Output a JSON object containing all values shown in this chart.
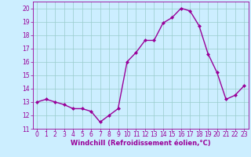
{
  "x": [
    0,
    1,
    2,
    3,
    4,
    5,
    6,
    7,
    8,
    9,
    10,
    11,
    12,
    13,
    14,
    15,
    16,
    17,
    18,
    19,
    20,
    21,
    22,
    23
  ],
  "y": [
    13.0,
    13.2,
    13.0,
    12.8,
    12.5,
    12.5,
    12.3,
    11.5,
    12.0,
    12.5,
    16.0,
    16.7,
    17.6,
    17.6,
    18.9,
    19.3,
    20.0,
    19.8,
    18.7,
    16.6,
    15.2,
    13.2,
    13.5,
    14.2
  ],
  "line_color": "#990099",
  "marker": "D",
  "marker_size": 2.0,
  "line_width": 1.0,
  "bg_color": "#cceeff",
  "grid_color": "#99cccc",
  "xlabel": "Windchill (Refroidissement éolien,°C)",
  "xlabel_color": "#990099",
  "tick_color": "#990099",
  "ylim": [
    11,
    20.5
  ],
  "xlim": [
    -0.5,
    23.5
  ],
  "yticks": [
    11,
    12,
    13,
    14,
    15,
    16,
    17,
    18,
    19,
    20
  ],
  "xticks": [
    0,
    1,
    2,
    3,
    4,
    5,
    6,
    7,
    8,
    9,
    10,
    11,
    12,
    13,
    14,
    15,
    16,
    17,
    18,
    19,
    20,
    21,
    22,
    23
  ],
  "tick_fontsize": 5.5,
  "xlabel_fontsize": 6.0
}
